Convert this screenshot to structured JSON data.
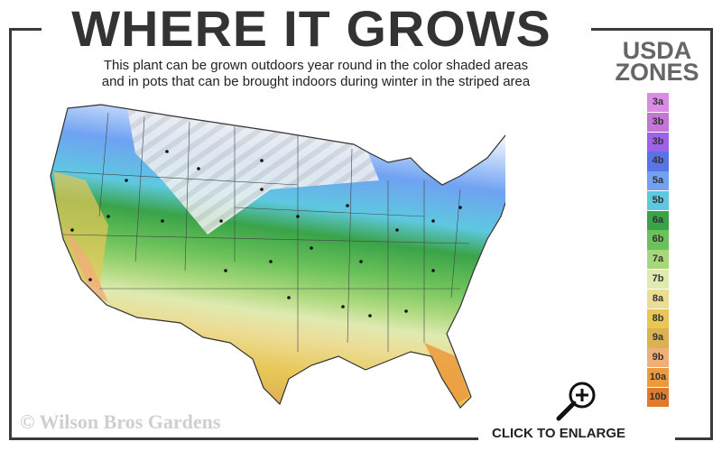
{
  "header": {
    "title": "WHERE IT GROWS",
    "subtitle_line1": "This plant can be grown outdoors year round in the color shaded areas",
    "subtitle_line2": "and in pots that can be brought indoors during winter in the striped area"
  },
  "legend": {
    "title_line1": "USDA",
    "title_line2": "ZONES",
    "zones": [
      {
        "label": "3a",
        "color": "#d98be6"
      },
      {
        "label": "3b",
        "color": "#c575d8"
      },
      {
        "label": "3b",
        "color": "#9d62ea"
      },
      {
        "label": "4b",
        "color": "#5a73e6"
      },
      {
        "label": "5a",
        "color": "#6fa2f2"
      },
      {
        "label": "5b",
        "color": "#5ec8e0"
      },
      {
        "label": "6a",
        "color": "#3aa348"
      },
      {
        "label": "6b",
        "color": "#6cc25a"
      },
      {
        "label": "7a",
        "color": "#a8d77a"
      },
      {
        "label": "7b",
        "color": "#dfeab0"
      },
      {
        "label": "8a",
        "color": "#ecdc94"
      },
      {
        "label": "8b",
        "color": "#e8c757"
      },
      {
        "label": "9a",
        "color": "#dcb152"
      },
      {
        "label": "9b",
        "color": "#f0ae78"
      },
      {
        "label": "10a",
        "color": "#ec9a3c"
      },
      {
        "label": "10b",
        "color": "#e07b2e"
      }
    ]
  },
  "footer": {
    "copyright": "© Wilson Bros Gardens",
    "enlarge_label": "CLICK TO ENLARGE",
    "enlarge_icon": "zoom-in-magnifier-icon"
  }
}
